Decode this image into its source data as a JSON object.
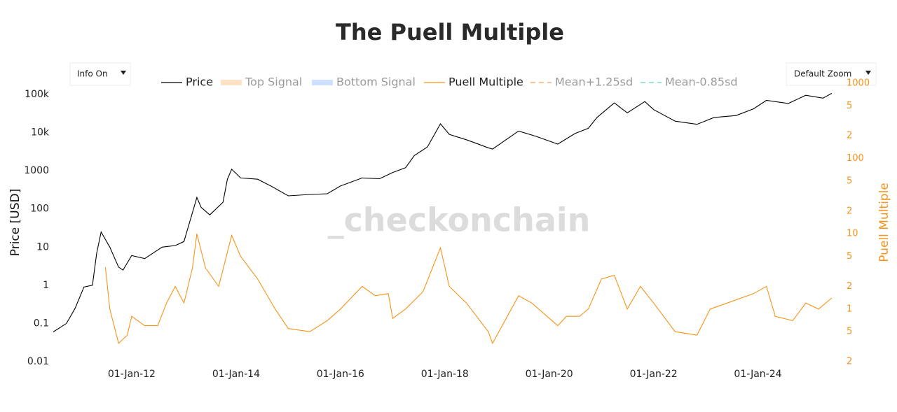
{
  "chart_data": {
    "type": "line",
    "title": "The Puell Multiple",
    "watermark": "_checkonchain",
    "controls": [
      "Info On",
      "Default Zoom"
    ],
    "y_label": "Price [USD]",
    "y2_label": "Puell Multiple",
    "log_y": true,
    "log_y2": true,
    "xlim": [
      "2010-07-01",
      "2025-07-01"
    ],
    "xticks": [
      {
        "value": "2012-01-01",
        "label": "01-Jan-12"
      },
      {
        "value": "2014-01-01",
        "label": "01-Jan-14"
      },
      {
        "value": "2016-01-01",
        "label": "01-Jan-16"
      },
      {
        "value": "2018-01-01",
        "label": "01-Jan-18"
      },
      {
        "value": "2020-01-01",
        "label": "01-Jan-20"
      },
      {
        "value": "2022-01-01",
        "label": "01-Jan-22"
      },
      {
        "value": "2024-01-01",
        "label": "01-Jan-24"
      }
    ],
    "ylim": [
      0.0088,
      205000
    ],
    "yticks": [
      0.01,
      0.1,
      1,
      10,
      100,
      1000,
      {
        "value": 10000,
        "label": "10k"
      },
      {
        "value": 100000,
        "label": "100k"
      }
    ],
    "y2lim": [
      0.1875,
      1020
    ],
    "y2ticks": [
      {
        "value": 0.2,
        "label": "2"
      },
      {
        "value": 0.5,
        "label": "5"
      },
      1,
      2,
      5,
      10,
      {
        "value": 20,
        "label": "2"
      },
      {
        "value": 50,
        "label": "5"
      },
      100,
      {
        "value": 200,
        "label": "2"
      },
      {
        "value": 500,
        "label": "5"
      },
      1000
    ],
    "series": [
      {
        "name": "Price",
        "color": "#000000",
        "x": [
          "2010-07",
          "2010-10",
          "2010-12",
          "2011-02",
          "2011-04",
          "2011-05",
          "2011-06",
          "2011-08",
          "2011-10",
          "2011-11",
          "2012-01",
          "2012-04",
          "2012-08",
          "2012-11",
          "2013-01",
          "2013-03",
          "2013-04",
          "2013-05",
          "2013-07",
          "2013-10",
          "2013-11",
          "2013-12",
          "2014-02",
          "2014-06",
          "2014-09",
          "2015-01",
          "2015-06",
          "2015-10",
          "2016-01",
          "2016-06",
          "2016-10",
          "2017-01",
          "2017-04",
          "2017-06",
          "2017-09",
          "2017-12",
          "2018-02",
          "2018-06",
          "2018-11",
          "2018-12",
          "2019-06",
          "2019-10",
          "2020-03",
          "2020-07",
          "2020-10",
          "2020-12",
          "2021-04",
          "2021-07",
          "2021-11",
          "2022-01",
          "2022-06",
          "2022-11",
          "2023-03",
          "2023-08",
          "2023-12",
          "2024-03",
          "2024-08",
          "2024-12",
          "2025-04",
          "2025-06"
        ],
        "values": [
          0.06,
          0.1,
          0.25,
          0.9,
          1.0,
          7,
          25,
          10,
          3,
          2.5,
          6,
          5,
          10,
          11,
          14,
          80,
          200,
          110,
          70,
          150,
          600,
          1100,
          650,
          600,
          400,
          220,
          240,
          250,
          400,
          650,
          620,
          900,
          1200,
          2500,
          4200,
          17000,
          9000,
          6500,
          4000,
          3700,
          11000,
          8000,
          5000,
          9500,
          13000,
          25000,
          60000,
          33000,
          65000,
          40000,
          20000,
          16500,
          25000,
          28000,
          42000,
          70000,
          58000,
          95000,
          80000,
          107000
        ]
      },
      {
        "name": "Top Signal",
        "color": "#ffe2c6",
        "visible": "legendonly"
      },
      {
        "name": "Bottom Signal",
        "color": "#cfe0ff",
        "visible": "legendonly"
      },
      {
        "name": "Puell Multiple",
        "color": "#f7931a",
        "axis": "y2",
        "x": [
          "2011-07",
          "2011-08",
          "2011-10",
          "2011-12",
          "2012-01",
          "2012-04",
          "2012-07",
          "2012-09",
          "2012-11",
          "2013-01",
          "2013-03",
          "2013-04",
          "2013-06",
          "2013-09",
          "2013-12",
          "2014-02",
          "2014-06",
          "2014-10",
          "2015-01",
          "2015-06",
          "2015-10",
          "2016-01",
          "2016-06",
          "2016-09",
          "2016-12",
          "2017-01",
          "2017-04",
          "2017-08",
          "2017-12",
          "2018-02",
          "2018-06",
          "2018-11",
          "2018-12",
          "2019-06",
          "2019-09",
          "2020-03",
          "2020-05",
          "2020-08",
          "2020-10",
          "2021-01",
          "2021-04",
          "2021-07",
          "2021-10",
          "2022-01",
          "2022-06",
          "2022-11",
          "2023-02",
          "2023-06",
          "2023-12",
          "2024-03",
          "2024-05",
          "2024-09",
          "2024-12",
          "2025-03",
          "2025-06"
        ],
        "values": [
          3.6,
          1.0,
          0.35,
          0.45,
          0.8,
          0.6,
          0.6,
          1.2,
          2.0,
          1.2,
          3.5,
          10,
          3.5,
          2.0,
          9.5,
          5,
          2.5,
          1.0,
          0.55,
          0.5,
          0.7,
          1.0,
          2.0,
          1.5,
          1.6,
          0.75,
          1.0,
          1.7,
          6.5,
          2.0,
          1.2,
          0.5,
          0.35,
          1.5,
          1.2,
          0.6,
          0.8,
          0.8,
          1.0,
          2.5,
          2.8,
          1.0,
          2.0,
          1.2,
          0.5,
          0.45,
          1.0,
          1.2,
          1.6,
          2.0,
          0.8,
          0.7,
          1.2,
          1.0,
          1.4
        ]
      },
      {
        "name": "Mean+1.25sd",
        "color": "#f9c49a",
        "dash": true,
        "visible": "legendonly"
      },
      {
        "name": "Mean-0.85sd",
        "color": "#9fe3d6",
        "dash": true,
        "visible": "legendonly"
      }
    ]
  }
}
